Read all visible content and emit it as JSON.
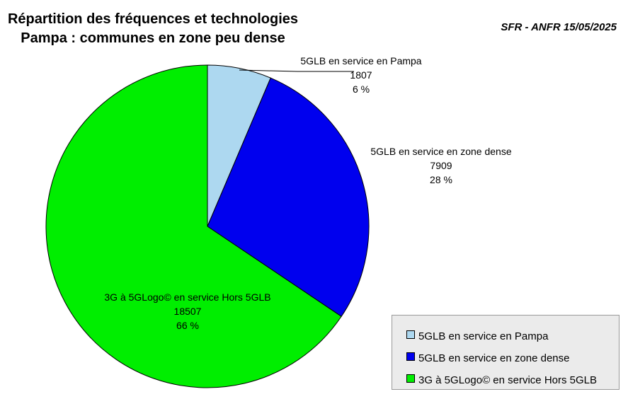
{
  "title_line1": "Répartition des fréquences et technologies",
  "title_line2": "Pampa : communes en zone peu dense",
  "source": "SFR - ANFR 15/05/2025",
  "chart_data": {
    "type": "pie",
    "title": "Répartition des fréquences et technologies Pampa : communes en zone peu dense",
    "slices": [
      {
        "label": "5GLB en service en Pampa",
        "value": 1807,
        "percent": "6 %",
        "color": "#add8f0"
      },
      {
        "label": "5GLB en service en zone dense",
        "value": 7909,
        "percent": "28 %",
        "color": "#0000ee"
      },
      {
        "label": "3G à 5GLogo© en service Hors 5GLB",
        "value": 18507,
        "percent": "66 %",
        "color": "#00ee00"
      }
    ],
    "legend_position": "bottom-right"
  }
}
